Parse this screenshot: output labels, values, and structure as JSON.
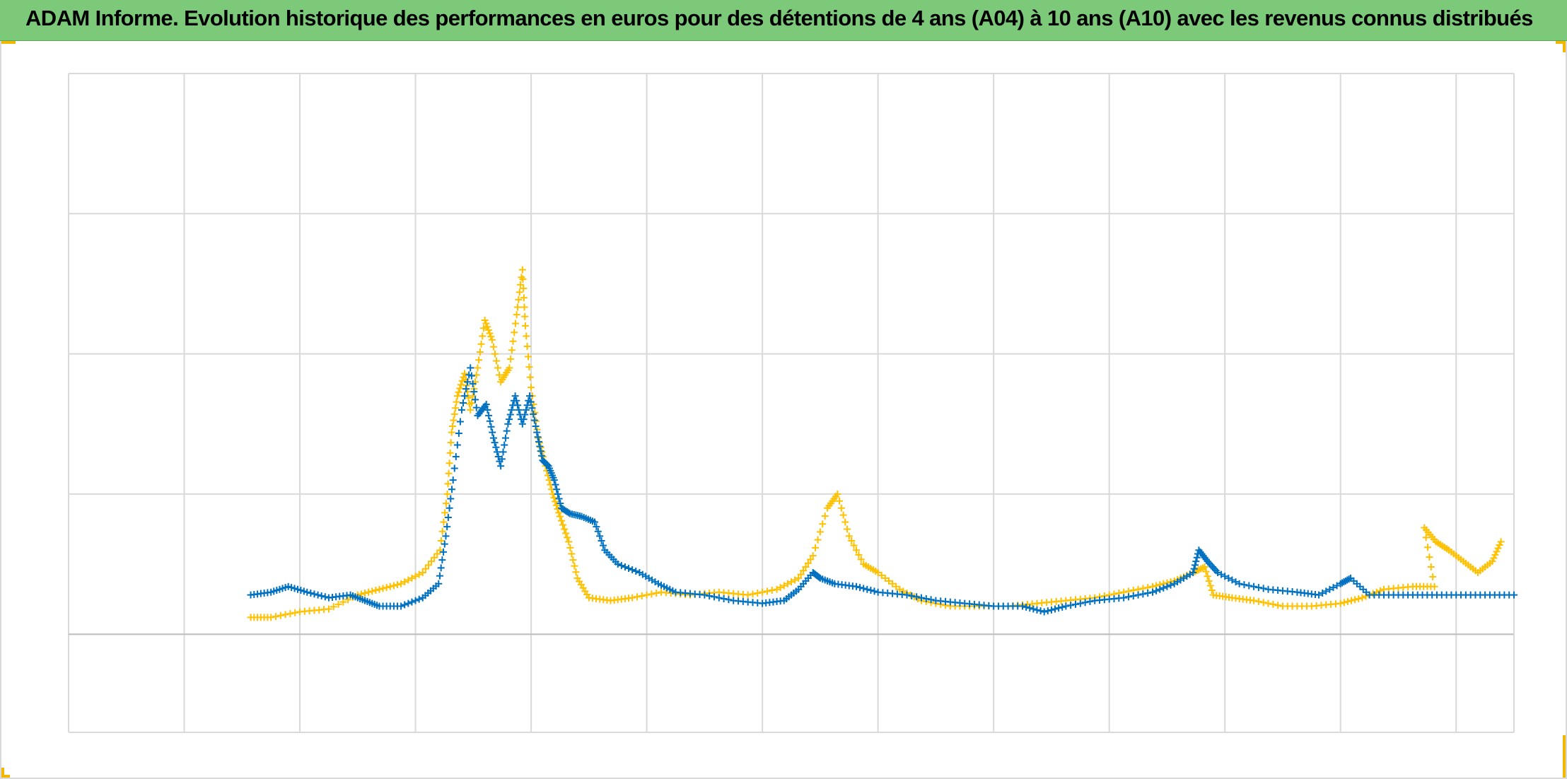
{
  "title": "ADAM Informe. Evolution historique des performances en euros pour des détentions de 4 ans (A04) à 10 ans (A10) avec les revenus connus distribués",
  "colors": {
    "title_background": "#7dc97a",
    "series_a": "#ffc000",
    "series_b": "#0070c0",
    "gridline": "#d9d9d9",
    "corner_accent": "#f2b800"
  },
  "chart_data": {
    "type": "scatter",
    "marker": "plus",
    "title": "ADAM Informe. Evolution historique des performances en euros pour des détentions de 4 ans (A04) à 10 ans (A10) avec les revenus connus distribués",
    "xlabel": "",
    "ylabel": "",
    "tick_labels_visible": false,
    "legend": "none",
    "grid": true,
    "xlim": [
      0,
      100
    ],
    "ylim": [
      -0.35,
      2.0
    ],
    "x_gridlines": [
      0,
      8,
      16,
      24,
      32,
      40,
      48,
      56,
      64,
      72,
      80,
      88,
      96
    ],
    "y_gridlines": [
      0,
      0.5,
      1.0,
      1.5,
      2.0
    ],
    "series": [
      {
        "color": "#ffc000",
        "points": [
          [
            12.6,
            0.06
          ],
          [
            14,
            0.06
          ],
          [
            16,
            0.08
          ],
          [
            18,
            0.09
          ],
          [
            20,
            0.14
          ],
          [
            21.5,
            0.16
          ],
          [
            23,
            0.18
          ],
          [
            24.5,
            0.22
          ],
          [
            25.7,
            0.3
          ],
          [
            26.2,
            0.5
          ],
          [
            26.5,
            0.72
          ],
          [
            26.9,
            0.85
          ],
          [
            27.4,
            0.93
          ],
          [
            27.8,
            0.8
          ],
          [
            28.3,
            0.95
          ],
          [
            28.8,
            1.12
          ],
          [
            29.3,
            1.05
          ],
          [
            29.9,
            0.9
          ],
          [
            30.5,
            0.95
          ],
          [
            31,
            1.14
          ],
          [
            31.4,
            1.3
          ],
          [
            31.6,
            1.1
          ],
          [
            32,
            0.88
          ],
          [
            32.5,
            0.7
          ],
          [
            33,
            0.6
          ],
          [
            33.5,
            0.5
          ],
          [
            34,
            0.42
          ],
          [
            34.6,
            0.33
          ],
          [
            35.2,
            0.2
          ],
          [
            36,
            0.13
          ],
          [
            37.5,
            0.12
          ],
          [
            39,
            0.13
          ],
          [
            41,
            0.15
          ],
          [
            43,
            0.14
          ],
          [
            45,
            0.15
          ],
          [
            47,
            0.14
          ],
          [
            49,
            0.16
          ],
          [
            50.5,
            0.2
          ],
          [
            51.5,
            0.28
          ],
          [
            52.5,
            0.45
          ],
          [
            53.2,
            0.5
          ],
          [
            54,
            0.35
          ],
          [
            55,
            0.25
          ],
          [
            56,
            0.22
          ],
          [
            57.5,
            0.16
          ],
          [
            59,
            0.12
          ],
          [
            61,
            0.1
          ],
          [
            63,
            0.1
          ],
          [
            65,
            0.1
          ],
          [
            67,
            0.11
          ],
          [
            69,
            0.12
          ],
          [
            71,
            0.13
          ],
          [
            73,
            0.15
          ],
          [
            75,
            0.17
          ],
          [
            76.5,
            0.19
          ],
          [
            77.8,
            0.22
          ],
          [
            78.6,
            0.24
          ],
          [
            79.2,
            0.14
          ],
          [
            80.5,
            0.13
          ],
          [
            82,
            0.12
          ],
          [
            84,
            0.1
          ],
          [
            86,
            0.1
          ],
          [
            88,
            0.11
          ],
          [
            89.5,
            0.13
          ],
          [
            91,
            0.16
          ],
          [
            93,
            0.17
          ],
          [
            94.5,
            0.17
          ],
          [
            93.8,
            0.38
          ],
          [
            94.6,
            0.33
          ],
          [
            95.5,
            0.3
          ],
          [
            96.5,
            0.26
          ],
          [
            97.5,
            0.22
          ],
          [
            98.5,
            0.26
          ],
          [
            99.1,
            0.33
          ]
        ]
      },
      {
        "color": "#0070c0",
        "points": [
          [
            12.6,
            0.14
          ],
          [
            14,
            0.15
          ],
          [
            15.2,
            0.17
          ],
          [
            16.5,
            0.15
          ],
          [
            18,
            0.13
          ],
          [
            19.5,
            0.14
          ],
          [
            20.5,
            0.12
          ],
          [
            21.5,
            0.1
          ],
          [
            23,
            0.1
          ],
          [
            24.5,
            0.13
          ],
          [
            25.6,
            0.18
          ],
          [
            26.1,
            0.35
          ],
          [
            26.6,
            0.55
          ],
          [
            27.2,
            0.8
          ],
          [
            27.8,
            0.95
          ],
          [
            28.3,
            0.78
          ],
          [
            28.9,
            0.82
          ],
          [
            29.4,
            0.7
          ],
          [
            29.9,
            0.6
          ],
          [
            30.4,
            0.75
          ],
          [
            30.9,
            0.85
          ],
          [
            31.4,
            0.75
          ],
          [
            31.9,
            0.85
          ],
          [
            32.4,
            0.72
          ],
          [
            32.8,
            0.62
          ],
          [
            33.2,
            0.6
          ],
          [
            33.6,
            0.55
          ],
          [
            34.1,
            0.45
          ],
          [
            34.7,
            0.43
          ],
          [
            35.5,
            0.42
          ],
          [
            36.4,
            0.4
          ],
          [
            37.1,
            0.3
          ],
          [
            38,
            0.25
          ],
          [
            39.5,
            0.22
          ],
          [
            40.8,
            0.18
          ],
          [
            42,
            0.15
          ],
          [
            44,
            0.14
          ],
          [
            46,
            0.12
          ],
          [
            48,
            0.11
          ],
          [
            49.5,
            0.12
          ],
          [
            50.5,
            0.16
          ],
          [
            51.5,
            0.22
          ],
          [
            52,
            0.2
          ],
          [
            53,
            0.18
          ],
          [
            54.5,
            0.17
          ],
          [
            56,
            0.15
          ],
          [
            58,
            0.14
          ],
          [
            60,
            0.12
          ],
          [
            62,
            0.11
          ],
          [
            64,
            0.1
          ],
          [
            66,
            0.1
          ],
          [
            67.5,
            0.08
          ],
          [
            69,
            0.1
          ],
          [
            71,
            0.12
          ],
          [
            73,
            0.13
          ],
          [
            75,
            0.15
          ],
          [
            76.5,
            0.18
          ],
          [
            77.8,
            0.22
          ],
          [
            78.2,
            0.3
          ],
          [
            78.8,
            0.26
          ],
          [
            79.5,
            0.22
          ],
          [
            81,
            0.18
          ],
          [
            83,
            0.16
          ],
          [
            85,
            0.15
          ],
          [
            86.5,
            0.14
          ],
          [
            88,
            0.18
          ],
          [
            88.7,
            0.2
          ],
          [
            90,
            0.14
          ],
          [
            92,
            0.14
          ],
          [
            94,
            0.14
          ],
          [
            96,
            0.14
          ],
          [
            98,
            0.14
          ],
          [
            100,
            0.14
          ]
        ]
      }
    ]
  }
}
